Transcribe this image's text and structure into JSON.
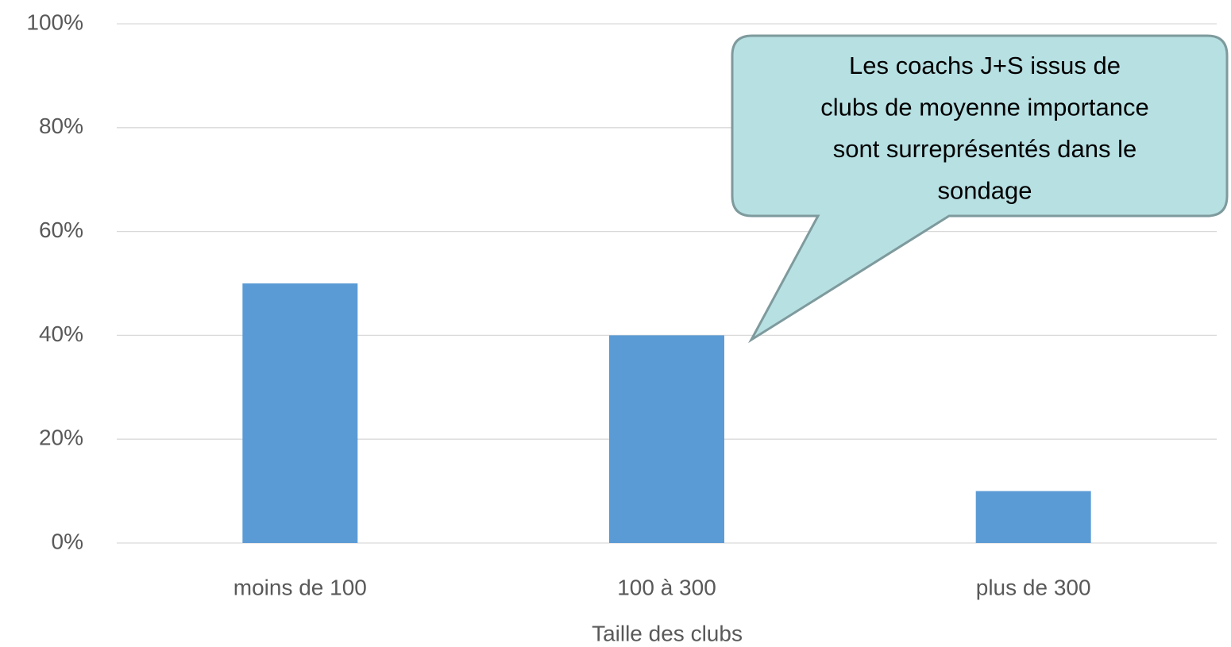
{
  "chart_data": {
    "type": "bar",
    "categories": [
      "moins de 100",
      "100 à 300",
      "plus de 300"
    ],
    "values": [
      50,
      40,
      10
    ],
    "color": "#5b9bd5",
    "x_label": "Taille des clubs",
    "ylim": [
      0,
      100
    ],
    "yticks": [
      {
        "value": 0,
        "label": "0%"
      },
      {
        "value": 20,
        "label": "20%"
      },
      {
        "value": 40,
        "label": "40%"
      },
      {
        "value": 60,
        "label": "60%"
      },
      {
        "value": 80,
        "label": "80%"
      },
      {
        "value": 100,
        "label": "100%"
      }
    ],
    "grid": true,
    "annotation": [
      "Les coachs J+S issus de",
      "clubs de moyenne importance",
      "sont surreprésentés dans le",
      "sondage"
    ]
  }
}
